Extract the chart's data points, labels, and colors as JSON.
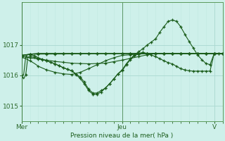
{
  "background_color": "#cef0ea",
  "plot_bg_color": "#cef0ea",
  "grid_major_color": "#aad8d0",
  "grid_minor_color": "#c0e8e0",
  "line_color": "#1a5c1a",
  "xlabel": "Pression niveau de la mer( hPa )",
  "ylim": [
    1014.5,
    1018.4
  ],
  "xlim": [
    0,
    96
  ],
  "yticks": [
    1015,
    1016,
    1017
  ],
  "xtick_positions": [
    0,
    48,
    92
  ],
  "xtick_labels": [
    "Mer",
    "Jeu",
    "V"
  ],
  "lines": [
    {
      "kp": [
        [
          0,
          1016.62
        ],
        [
          2,
          1016.67
        ],
        [
          4,
          1016.7
        ],
        [
          6,
          1016.71
        ],
        [
          8,
          1016.72
        ],
        [
          48,
          1016.72
        ],
        [
          60,
          1016.72
        ],
        [
          72,
          1016.72
        ],
        [
          80,
          1016.72
        ],
        [
          88,
          1016.72
        ],
        [
          96,
          1016.72
        ]
      ],
      "marker_x": [
        0,
        4,
        8,
        12,
        16,
        20,
        24,
        28,
        32,
        36,
        40,
        44,
        48,
        52,
        56,
        60,
        64,
        68,
        72,
        76,
        80,
        84,
        88,
        92,
        96
      ]
    },
    {
      "kp": [
        [
          0,
          1016.65
        ],
        [
          2,
          1016.68
        ],
        [
          4,
          1016.7
        ],
        [
          6,
          1016.71
        ],
        [
          8,
          1016.72
        ],
        [
          48,
          1016.72
        ],
        [
          96,
          1016.72
        ]
      ],
      "marker_x": [
        0,
        4,
        8,
        12,
        16,
        20,
        24,
        28,
        32,
        36,
        40,
        44,
        48,
        52,
        56,
        60,
        64,
        68,
        72,
        76,
        80,
        84,
        88,
        92,
        96
      ]
    },
    {
      "kp": [
        [
          0,
          1016.67
        ],
        [
          2,
          1016.68
        ],
        [
          4,
          1016.69
        ],
        [
          6,
          1016.7
        ],
        [
          8,
          1016.7
        ],
        [
          48,
          1016.72
        ],
        [
          96,
          1016.72
        ]
      ],
      "marker_x": [
        0,
        4,
        8,
        12,
        16,
        20,
        24,
        28,
        32,
        36,
        40,
        44,
        48,
        52,
        56,
        60,
        64,
        68,
        72,
        76,
        80,
        84,
        88,
        92,
        96
      ]
    },
    {
      "kp": [
        [
          0,
          1016.63
        ],
        [
          2,
          1016.6
        ],
        [
          6,
          1016.56
        ],
        [
          10,
          1016.52
        ],
        [
          16,
          1016.46
        ],
        [
          24,
          1016.4
        ],
        [
          32,
          1016.38
        ],
        [
          40,
          1016.4
        ],
        [
          48,
          1016.5
        ],
        [
          56,
          1016.62
        ],
        [
          60,
          1016.68
        ],
        [
          64,
          1016.72
        ],
        [
          72,
          1016.72
        ],
        [
          80,
          1016.72
        ],
        [
          88,
          1016.72
        ],
        [
          96,
          1016.72
        ]
      ],
      "marker_x": [
        0,
        4,
        8,
        12,
        16,
        20,
        24,
        28,
        32,
        36,
        40,
        44,
        48,
        52,
        56,
        60,
        64,
        68,
        72,
        76,
        80,
        84,
        88,
        92,
        96
      ]
    },
    {
      "kp": [
        [
          0,
          1016.6
        ],
        [
          2,
          1016.55
        ],
        [
          4,
          1016.48
        ],
        [
          6,
          1016.4
        ],
        [
          8,
          1016.3
        ],
        [
          12,
          1016.18
        ],
        [
          16,
          1016.1
        ],
        [
          20,
          1016.05
        ],
        [
          24,
          1016.03
        ],
        [
          28,
          1016.1
        ],
        [
          32,
          1016.22
        ],
        [
          36,
          1016.35
        ],
        [
          40,
          1016.48
        ],
        [
          44,
          1016.58
        ],
        [
          48,
          1016.66
        ],
        [
          56,
          1016.7
        ],
        [
          60,
          1016.72
        ],
        [
          64,
          1016.72
        ],
        [
          72,
          1016.72
        ],
        [
          80,
          1016.72
        ],
        [
          88,
          1016.72
        ],
        [
          96,
          1016.72
        ]
      ],
      "marker_x": [
        0,
        4,
        8,
        12,
        16,
        20,
        24,
        28,
        32,
        36,
        40,
        44,
        48,
        52,
        56,
        60,
        64,
        68,
        72,
        76,
        80,
        84,
        88,
        92,
        96
      ]
    },
    {
      "kp": [
        [
          0,
          1016.02
        ],
        [
          1,
          1015.88
        ],
        [
          2,
          1016.02
        ],
        [
          3,
          1016.6
        ],
        [
          4,
          1016.62
        ],
        [
          6,
          1016.6
        ],
        [
          8,
          1016.55
        ],
        [
          12,
          1016.48
        ],
        [
          16,
          1016.38
        ],
        [
          20,
          1016.25
        ],
        [
          24,
          1016.15
        ],
        [
          28,
          1015.95
        ],
        [
          30,
          1015.78
        ],
        [
          32,
          1015.55
        ],
        [
          34,
          1015.42
        ],
        [
          36,
          1015.42
        ],
        [
          38,
          1015.5
        ],
        [
          40,
          1015.58
        ],
        [
          42,
          1015.72
        ],
        [
          44,
          1015.88
        ],
        [
          46,
          1016.05
        ],
        [
          48,
          1016.15
        ],
        [
          50,
          1016.35
        ],
        [
          52,
          1016.52
        ],
        [
          54,
          1016.65
        ],
        [
          56,
          1016.72
        ],
        [
          58,
          1016.76
        ],
        [
          60,
          1016.72
        ],
        [
          64,
          1016.62
        ],
        [
          66,
          1016.55
        ],
        [
          68,
          1016.48
        ],
        [
          70,
          1016.42
        ],
        [
          72,
          1016.38
        ],
        [
          74,
          1016.3
        ],
        [
          76,
          1016.22
        ],
        [
          78,
          1016.18
        ],
        [
          80,
          1016.15
        ],
        [
          82,
          1016.14
        ],
        [
          84,
          1016.14
        ],
        [
          86,
          1016.14
        ],
        [
          88,
          1016.14
        ],
        [
          90,
          1016.14
        ],
        [
          92,
          1016.72
        ],
        [
          96,
          1016.72
        ]
      ],
      "marker_x": [
        0,
        2,
        4,
        6,
        8,
        10,
        12,
        14,
        16,
        18,
        20,
        22,
        24,
        26,
        28,
        30,
        32,
        34,
        36,
        38,
        40,
        42,
        44,
        46,
        48,
        50,
        52,
        54,
        56,
        58,
        60,
        62,
        64,
        66,
        68,
        70,
        72,
        74,
        76,
        78,
        80,
        82,
        84,
        86,
        88,
        90,
        92,
        94,
        96
      ]
    },
    {
      "kp": [
        [
          0,
          1015.95
        ],
        [
          1,
          1016.02
        ],
        [
          2,
          1016.62
        ],
        [
          3,
          1016.68
        ],
        [
          4,
          1016.68
        ],
        [
          6,
          1016.65
        ],
        [
          8,
          1016.58
        ],
        [
          12,
          1016.48
        ],
        [
          16,
          1016.38
        ],
        [
          20,
          1016.25
        ],
        [
          24,
          1016.15
        ],
        [
          28,
          1015.9
        ],
        [
          30,
          1015.72
        ],
        [
          32,
          1015.5
        ],
        [
          34,
          1015.38
        ],
        [
          36,
          1015.38
        ],
        [
          38,
          1015.45
        ],
        [
          40,
          1015.58
        ],
        [
          42,
          1015.72
        ],
        [
          44,
          1015.88
        ],
        [
          46,
          1016.05
        ],
        [
          48,
          1016.18
        ],
        [
          50,
          1016.38
        ],
        [
          52,
          1016.55
        ],
        [
          54,
          1016.68
        ],
        [
          56,
          1016.78
        ],
        [
          58,
          1016.88
        ],
        [
          60,
          1017.0
        ],
        [
          62,
          1017.1
        ],
        [
          64,
          1017.2
        ],
        [
          66,
          1017.42
        ],
        [
          68,
          1017.6
        ],
        [
          70,
          1017.78
        ],
        [
          72,
          1017.82
        ],
        [
          74,
          1017.78
        ],
        [
          76,
          1017.6
        ],
        [
          78,
          1017.35
        ],
        [
          80,
          1017.12
        ],
        [
          82,
          1016.9
        ],
        [
          84,
          1016.68
        ],
        [
          86,
          1016.52
        ],
        [
          88,
          1016.4
        ],
        [
          90,
          1016.35
        ],
        [
          92,
          1016.72
        ],
        [
          96,
          1016.72
        ]
      ],
      "marker_x": [
        0,
        2,
        4,
        6,
        8,
        10,
        12,
        14,
        16,
        18,
        20,
        22,
        24,
        26,
        28,
        30,
        32,
        34,
        36,
        38,
        40,
        42,
        44,
        46,
        48,
        50,
        52,
        54,
        56,
        58,
        60,
        62,
        64,
        66,
        68,
        70,
        72,
        74,
        76,
        78,
        80,
        82,
        84,
        86,
        88,
        90,
        92,
        94,
        96
      ]
    }
  ]
}
